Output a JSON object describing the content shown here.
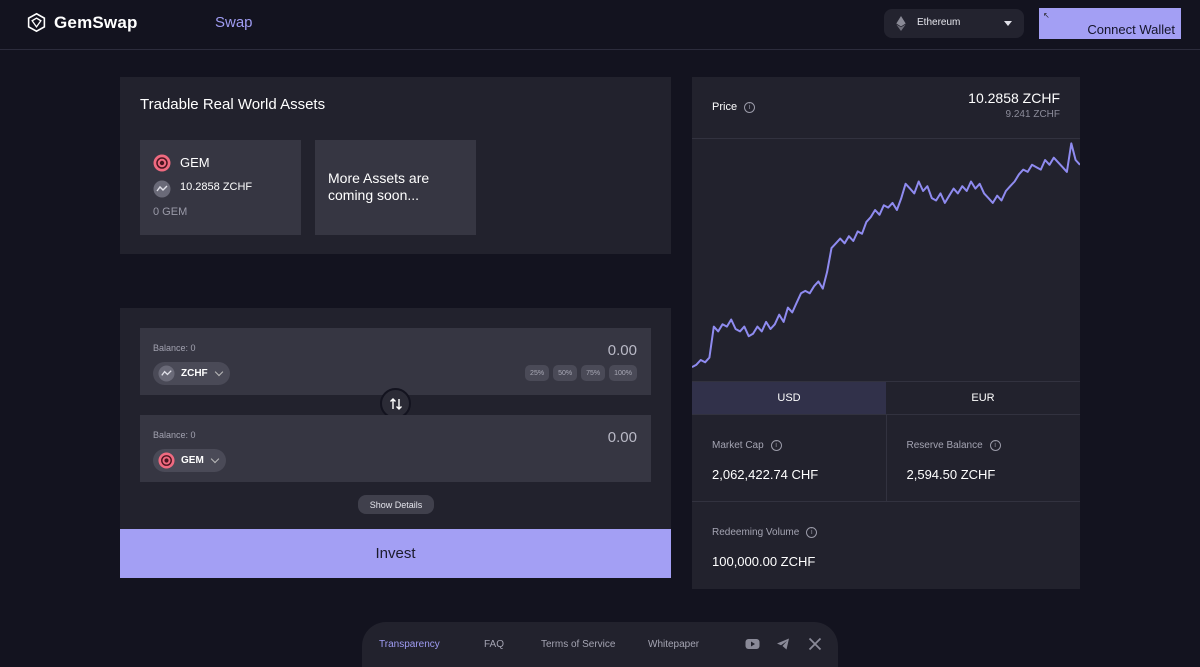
{
  "header": {
    "brand": "GemSwap",
    "nav_swap": "Swap",
    "network": "Ethereum",
    "connect_label": "Connect Wallet",
    "accent": "#a39ff4"
  },
  "assets": {
    "title": "Tradable Real World Assets",
    "card": {
      "name": "GEM",
      "price": "10.2858 ZCHF",
      "balance": "0 GEM",
      "icon": "gem-token-icon"
    },
    "more": "More Assets are coming soon..."
  },
  "swap": {
    "from": {
      "balance": "Balance: 0",
      "amount": "0.00",
      "token": "ZCHF",
      "percents": [
        "25%",
        "50%",
        "75%",
        "100%"
      ]
    },
    "to": {
      "balance": "Balance: 0",
      "amount": "0.00",
      "token": "GEM"
    },
    "show_details": "Show Details",
    "invest": "Invest"
  },
  "price": {
    "label": "Price",
    "main": "10.2858 ZCHF",
    "sub": "9.241 ZCHF",
    "tabs": [
      "USD",
      "EUR"
    ],
    "active_tab": "USD",
    "stats": {
      "market_cap_label": "Market Cap",
      "market_cap": "2,062,422.74 CHF",
      "reserve_label": "Reserve Balance",
      "reserve": "2,594.50 ZCHF",
      "redeeming_label": "Redeeming Volume",
      "redeeming": "100,000.00 ZCHF"
    }
  },
  "chart_data": {
    "type": "line",
    "title": "",
    "xlabel": "",
    "ylabel": "",
    "grid": false,
    "color": "#8f8bf0",
    "y": [
      0.05,
      0.06,
      0.08,
      0.07,
      0.09,
      0.22,
      0.2,
      0.23,
      0.22,
      0.25,
      0.21,
      0.2,
      0.22,
      0.18,
      0.19,
      0.22,
      0.2,
      0.24,
      0.21,
      0.23,
      0.27,
      0.24,
      0.3,
      0.28,
      0.32,
      0.36,
      0.37,
      0.36,
      0.39,
      0.41,
      0.38,
      0.45,
      0.55,
      0.57,
      0.59,
      0.57,
      0.6,
      0.58,
      0.62,
      0.61,
      0.66,
      0.68,
      0.71,
      0.69,
      0.73,
      0.72,
      0.74,
      0.71,
      0.76,
      0.82,
      0.8,
      0.78,
      0.83,
      0.79,
      0.81,
      0.76,
      0.75,
      0.78,
      0.74,
      0.77,
      0.8,
      0.78,
      0.81,
      0.79,
      0.83,
      0.8,
      0.82,
      0.78,
      0.76,
      0.74,
      0.77,
      0.75,
      0.79,
      0.81,
      0.83,
      0.86,
      0.88,
      0.87,
      0.9,
      0.89,
      0.88,
      0.92,
      0.9,
      0.93,
      0.91,
      0.89,
      0.87,
      0.99,
      0.92,
      0.9
    ]
  },
  "footer": {
    "links": [
      "Transparency",
      "FAQ",
      "Terms of Service",
      "Whitepaper"
    ],
    "active": "Transparency",
    "socials": [
      "youtube-icon",
      "telegram-icon",
      "x-icon"
    ]
  }
}
